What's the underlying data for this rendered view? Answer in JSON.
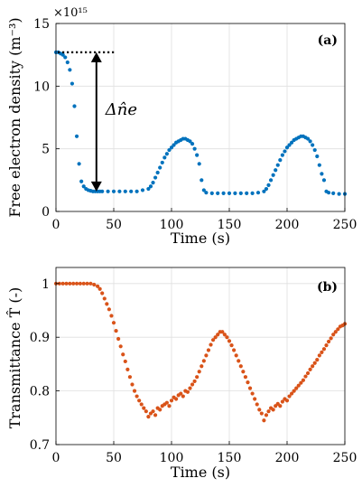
{
  "chart_data": [
    {
      "type": "scatter",
      "panel_label": "(a)",
      "xlabel": "Time (s)",
      "ylabel": "Free electron density  (m⁻³)",
      "y_multiplier_label": "×10¹⁵",
      "xlim": [
        0,
        250
      ],
      "ylim": [
        0,
        15
      ],
      "xticks": [
        "0",
        "50",
        "100",
        "150",
        "200",
        "250"
      ],
      "yticks": [
        "0",
        "5",
        "10",
        "15"
      ],
      "grid": true,
      "color": "#0072BD",
      "annotation": {
        "label": "Δn̂e",
        "reference_level": 12.7,
        "top": 12.7,
        "bottom": 1.6,
        "x": 35
      },
      "series": [
        {
          "x": [
            0,
            2,
            4,
            6,
            8,
            10,
            12,
            14,
            16,
            18,
            20,
            22,
            24,
            26,
            28,
            30,
            32,
            34,
            36,
            38,
            40,
            45,
            50,
            55,
            60,
            65,
            70,
            75,
            80,
            82,
            84,
            86,
            88,
            90,
            92,
            94,
            96,
            98,
            100,
            102,
            104,
            106,
            108,
            110,
            112,
            114,
            116,
            118,
            120,
            122,
            124,
            126,
            128,
            130,
            135,
            140,
            145,
            150,
            155,
            160,
            165,
            170,
            175,
            180,
            182,
            184,
            186,
            188,
            190,
            192,
            194,
            196,
            198,
            200,
            202,
            204,
            206,
            208,
            210,
            212,
            214,
            216,
            218,
            220,
            222,
            224,
            226,
            228,
            230,
            232,
            234,
            236,
            240,
            245,
            250
          ],
          "y": [
            12.7,
            12.7,
            12.6,
            12.5,
            12.3,
            11.9,
            11.3,
            10.2,
            8.4,
            6.0,
            3.8,
            2.4,
            2.0,
            1.8,
            1.7,
            1.65,
            1.6,
            1.6,
            1.6,
            1.6,
            1.6,
            1.6,
            1.6,
            1.6,
            1.6,
            1.6,
            1.6,
            1.7,
            1.8,
            2.0,
            2.3,
            2.7,
            3.1,
            3.5,
            3.9,
            4.3,
            4.6,
            4.9,
            5.1,
            5.3,
            5.5,
            5.6,
            5.7,
            5.8,
            5.8,
            5.7,
            5.6,
            5.4,
            5.0,
            4.5,
            3.8,
            2.5,
            1.7,
            1.5,
            1.45,
            1.45,
            1.45,
            1.45,
            1.45,
            1.45,
            1.45,
            1.45,
            1.5,
            1.6,
            1.8,
            2.1,
            2.5,
            2.9,
            3.3,
            3.7,
            4.1,
            4.5,
            4.8,
            5.1,
            5.3,
            5.5,
            5.7,
            5.8,
            5.9,
            6.0,
            6.0,
            5.9,
            5.8,
            5.6,
            5.3,
            4.9,
            4.4,
            3.7,
            3.0,
            2.5,
            1.6,
            1.5,
            1.45,
            1.4,
            1.4
          ]
        }
      ]
    },
    {
      "type": "scatter",
      "panel_label": "(b)",
      "xlabel": "Time (s)",
      "ylabel": "Transmittance T̂  (-)",
      "xlim": [
        0,
        250
      ],
      "ylim": [
        0.7,
        1.03
      ],
      "xticks": [
        "0",
        "50",
        "100",
        "150",
        "200",
        "250"
      ],
      "yticks": [
        "0.7",
        "0.8",
        "0.9",
        "1"
      ],
      "ytick_values": [
        0.7,
        0.8,
        0.9,
        1.0
      ],
      "grid": true,
      "color": "#D95319",
      "series": [
        {
          "x": [
            0,
            3,
            6,
            9,
            12,
            15,
            18,
            21,
            24,
            27,
            30,
            33,
            36,
            38,
            40,
            42,
            44,
            46,
            48,
            50,
            52,
            54,
            56,
            58,
            60,
            62,
            64,
            66,
            68,
            70,
            72,
            74,
            76,
            78,
            80,
            82,
            84,
            86,
            88,
            90,
            92,
            94,
            96,
            98,
            100,
            102,
            104,
            106,
            108,
            110,
            112,
            114,
            116,
            118,
            120,
            122,
            124,
            126,
            128,
            130,
            132,
            134,
            136,
            138,
            140,
            142,
            144,
            146,
            148,
            150,
            152,
            154,
            156,
            158,
            160,
            162,
            164,
            166,
            168,
            170,
            172,
            174,
            176,
            178,
            180,
            182,
            184,
            186,
            188,
            190,
            192,
            194,
            196,
            198,
            200,
            202,
            204,
            206,
            208,
            210,
            212,
            214,
            216,
            218,
            220,
            222,
            224,
            226,
            228,
            230,
            232,
            234,
            236,
            238,
            240,
            242,
            244,
            246,
            248,
            250
          ],
          "y": [
            1.0,
            1.0,
            1.0,
            1.0,
            1.0,
            1.0,
            1.0,
            1.0,
            1.0,
            1.0,
            1.0,
            0.998,
            0.995,
            0.99,
            0.982,
            0.972,
            0.962,
            0.952,
            0.94,
            0.927,
            0.912,
            0.897,
            0.883,
            0.868,
            0.855,
            0.84,
            0.826,
            0.812,
            0.8,
            0.79,
            0.782,
            0.775,
            0.768,
            0.762,
            0.752,
            0.758,
            0.762,
            0.755,
            0.768,
            0.765,
            0.772,
            0.775,
            0.778,
            0.772,
            0.782,
            0.788,
            0.785,
            0.792,
            0.795,
            0.79,
            0.8,
            0.798,
            0.805,
            0.812,
            0.818,
            0.826,
            0.836,
            0.846,
            0.856,
            0.866,
            0.876,
            0.886,
            0.895,
            0.9,
            0.905,
            0.91,
            0.91,
            0.905,
            0.9,
            0.893,
            0.885,
            0.876,
            0.866,
            0.856,
            0.846,
            0.836,
            0.826,
            0.816,
            0.805,
            0.795,
            0.785,
            0.775,
            0.765,
            0.758,
            0.745,
            0.755,
            0.762,
            0.768,
            0.765,
            0.772,
            0.776,
            0.772,
            0.78,
            0.785,
            0.782,
            0.79,
            0.795,
            0.8,
            0.805,
            0.81,
            0.815,
            0.82,
            0.827,
            0.833,
            0.84,
            0.846,
            0.852,
            0.858,
            0.866,
            0.872,
            0.878,
            0.885,
            0.892,
            0.898,
            0.905,
            0.91,
            0.915,
            0.92,
            0.922,
            0.925
          ]
        }
      ]
    }
  ]
}
